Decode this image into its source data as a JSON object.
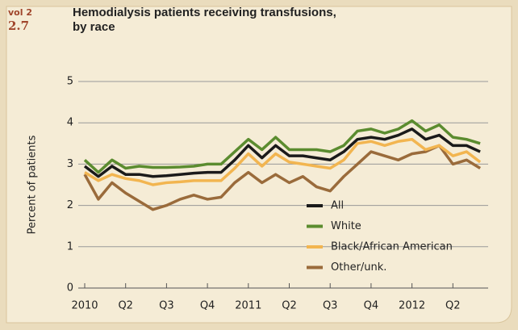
{
  "chart_data": {
    "type": "line",
    "volume": "vol 2",
    "figure_number": "2.7",
    "title": "Hemodialysis patients receiving transfusions, by race",
    "y_label": "Percent of patients",
    "categories": [
      "2010",
      null,
      null,
      "Q2",
      null,
      null,
      "Q3",
      null,
      null,
      "Q4",
      null,
      null,
      "2011",
      null,
      null,
      "Q2",
      null,
      null,
      "Q3",
      null,
      null,
      "Q4",
      null,
      null,
      "2012",
      null,
      null,
      "Q2",
      null,
      null
    ],
    "series": [
      {
        "name": "All",
        "color": "#1a1a1a",
        "values": [
          2.95,
          2.7,
          2.95,
          2.75,
          2.75,
          2.7,
          2.72,
          2.75,
          2.78,
          2.8,
          2.8,
          3.1,
          3.45,
          3.15,
          3.45,
          3.2,
          3.2,
          3.15,
          3.1,
          3.3,
          3.6,
          3.65,
          3.6,
          3.7,
          3.85,
          3.6,
          3.7,
          3.45,
          3.45,
          3.3
        ]
      },
      {
        "name": "White",
        "color": "#5b8c2f",
        "values": [
          3.1,
          2.8,
          3.1,
          2.9,
          2.95,
          2.92,
          2.92,
          2.93,
          2.95,
          3.0,
          3.0,
          3.3,
          3.6,
          3.35,
          3.65,
          3.35,
          3.35,
          3.35,
          3.3,
          3.45,
          3.8,
          3.85,
          3.75,
          3.85,
          4.05,
          3.8,
          3.95,
          3.65,
          3.6,
          3.5
        ]
      },
      {
        "name": "Black/African American",
        "color": "#f2b550",
        "values": [
          2.8,
          2.6,
          2.75,
          2.65,
          2.6,
          2.5,
          2.55,
          2.57,
          2.6,
          2.6,
          2.6,
          2.9,
          3.25,
          2.95,
          3.25,
          3.05,
          3.0,
          2.95,
          2.9,
          3.1,
          3.5,
          3.55,
          3.45,
          3.55,
          3.6,
          3.35,
          3.45,
          3.2,
          3.3,
          3.05
        ]
      },
      {
        "name": "Other/unk.",
        "color": "#9a6b3b",
        "values": [
          2.75,
          2.15,
          2.55,
          2.3,
          2.1,
          1.9,
          2.0,
          2.15,
          2.25,
          2.15,
          2.2,
          2.55,
          2.8,
          2.55,
          2.75,
          2.55,
          2.7,
          2.45,
          2.35,
          2.7,
          3.0,
          3.3,
          3.2,
          3.1,
          3.25,
          3.3,
          3.45,
          3.0,
          3.1,
          2.9
        ]
      }
    ],
    "ylim": [
      0,
      5
    ],
    "yticks": [
      0,
      1,
      2,
      3,
      4,
      5
    ],
    "grid": true
  }
}
